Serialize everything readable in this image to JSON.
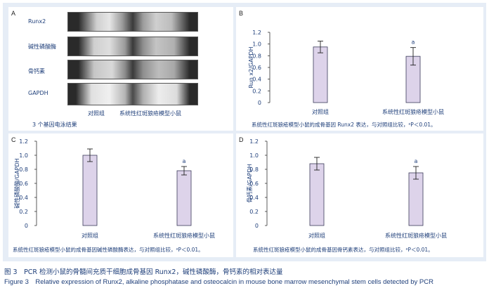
{
  "panel_a": {
    "letter": "A",
    "gel_labels": [
      "Runx2",
      "碱性磷酸酶",
      "骨钙素",
      "GAPDH"
    ],
    "lane_labels": [
      "对照组",
      "系统性红斑狼疮模型小鼠"
    ],
    "caption": "3 个基因电泳结果"
  },
  "panel_b": {
    "letter": "B",
    "caption": "系统性红斑狼疮模型小鼠的成骨基因 Runx2 表达，与对照组比较，ᵃP＜0.01。"
  },
  "panel_c": {
    "letter": "C",
    "caption": "系统性红斑狼疮模型小鼠的成骨基因碱性磷酸酶表达，与对照组比较，ᵃP＜0.01。"
  },
  "panel_d": {
    "letter": "D",
    "caption": "系统性红斑狼疮模型小鼠的成骨基因骨钙素表达，与对照组比较，ᵃP＜0.01。"
  },
  "figure_caption_zh": "图 3　PCR 检测小鼠的骨髓间充质干细胞成骨基因 Runx2，碱性磷酸酶，骨钙素的相对表达量",
  "figure_caption_en": "Figure 3　Relative expression of Runx2, alkaline phosphatase and osteocalcin in mouse bone marrow mesenchymal stem cells detected by PCR",
  "colors": {
    "bar_fill": "#ddd3ea",
    "bar_stroke": "#3a3a5a",
    "text": "#1f3f7a",
    "frame_bg": "#e6edf6"
  },
  "chart_data": [
    {
      "type": "bar",
      "ylabel": "Run x2/GAPDH",
      "categories": [
        "对照组",
        "系统性红斑狼疮模型小鼠"
      ],
      "values": [
        0.95,
        0.79
      ],
      "errors": [
        0.1,
        0.15
      ],
      "annotations": [
        "",
        "a"
      ],
      "yticks": [
        "0",
        "0.2",
        "0.4",
        "0.6",
        "0.8",
        "1.0",
        "1.2"
      ],
      "ylim": [
        0,
        1.2
      ]
    },
    {
      "type": "bar",
      "ylabel": "碱性磷酸酶/GAPDH",
      "categories": [
        "对照组",
        "系统性红斑狼疮模型小鼠"
      ],
      "values": [
        1.0,
        0.78
      ],
      "errors": [
        0.09,
        0.06
      ],
      "annotations": [
        "",
        "a"
      ],
      "yticks": [
        "0",
        "0.2",
        "0.4",
        "0.6",
        "0.8",
        "1.0",
        "1.2"
      ],
      "ylim": [
        0,
        1.2
      ]
    },
    {
      "type": "bar",
      "ylabel": "骨钙素/GAPDH",
      "categories": [
        "对照组",
        "系统性红斑狼疮模型小鼠"
      ],
      "values": [
        0.88,
        0.75
      ],
      "errors": [
        0.09,
        0.09
      ],
      "annotations": [
        "",
        "a"
      ],
      "yticks": [
        "0",
        "0.2",
        "0.4",
        "0.6",
        "0.8",
        "1.0",
        "1.2"
      ],
      "ylim": [
        0,
        1.2
      ]
    }
  ]
}
